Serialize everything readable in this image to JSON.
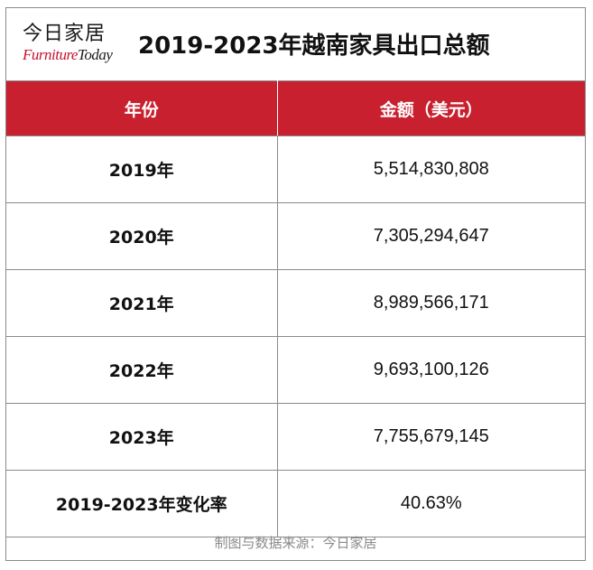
{
  "brand": {
    "name_cn": "今日家居",
    "name_en_part1": "Furniture",
    "name_en_part2": "Today"
  },
  "title": "2019-2023年越南家具出口总额",
  "table": {
    "headers": [
      "年份",
      "金额（美元）"
    ],
    "rows": [
      {
        "year": "2019年",
        "amount": "5,514,830,808"
      },
      {
        "year": "2020年",
        "amount": "7,305,294,647"
      },
      {
        "year": "2021年",
        "amount": "8,989,566,171"
      },
      {
        "year": "2022年",
        "amount": "9,693,100,126"
      },
      {
        "year": "2023年",
        "amount": "7,755,679,145"
      },
      {
        "year": "2019-2023年变化率",
        "amount": "40.63%"
      }
    ]
  },
  "source": "制图与数据来源：今日家居",
  "colors": {
    "header_bg": "#c8202f",
    "brand_red": "#c8102e"
  }
}
